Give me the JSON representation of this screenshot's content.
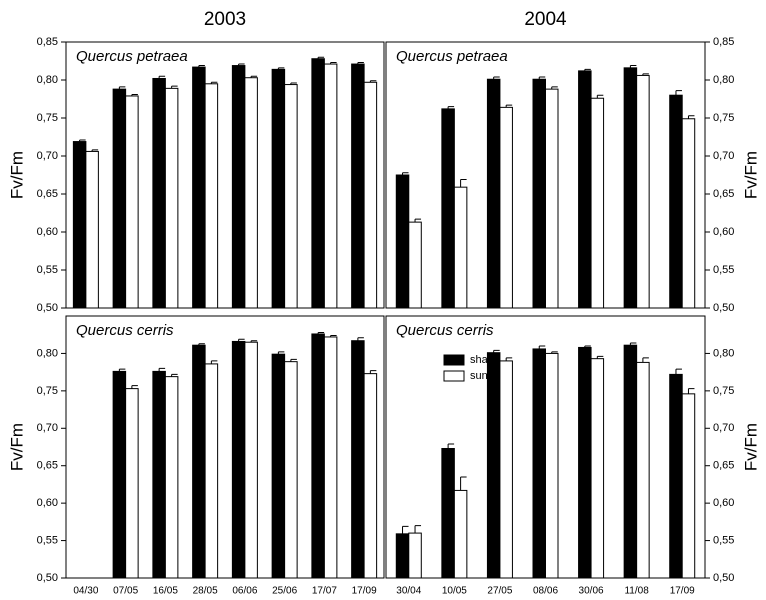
{
  "chart_data": [
    {
      "type": "bar",
      "title": "2003",
      "ylabel": "Fv/Fm",
      "annotation": "Quercus petraea",
      "series": [
        {
          "color": "#000000",
          "values": [
            0.719,
            0.788,
            0.802,
            0.817,
            0.819,
            0.814,
            0.828,
            0.821
          ],
          "errors": [
            0.002,
            0.003,
            0.003,
            0.002,
            0.002,
            0.002,
            0.002,
            0.002
          ]
        },
        {
          "color": "#ffffff",
          "values": [
            0.706,
            0.779,
            0.789,
            0.795,
            0.803,
            0.794,
            0.821,
            0.797
          ],
          "errors": [
            0.002,
            0.002,
            0.003,
            0.002,
            0.002,
            0.002,
            0.002,
            0.002
          ]
        }
      ],
      "ylim": [
        0.5,
        0.85
      ],
      "yticks": [
        {
          "value": 0.5,
          "label": "0,50"
        },
        {
          "value": 0.55,
          "label": "0,55"
        },
        {
          "value": 0.6,
          "label": "0,60"
        },
        {
          "value": 0.65,
          "label": "0,65"
        },
        {
          "value": 0.7,
          "label": "0,70"
        },
        {
          "value": 0.75,
          "label": "0,75"
        },
        {
          "value": 0.8,
          "label": "0,80"
        },
        {
          "value": 0.85,
          "label": "0,85"
        }
      ],
      "axis_side": "left"
    },
    {
      "type": "bar",
      "title": "2004",
      "ylabel": "Fv/Fm",
      "annotation": "Quercus petraea",
      "series": [
        {
          "color": "#000000",
          "values": [
            0.675,
            0.762,
            0.801,
            0.801,
            0.812,
            0.816,
            0.78
          ],
          "errors": [
            0.003,
            0.003,
            0.003,
            0.003,
            0.002,
            0.003,
            0.006
          ]
        },
        {
          "color": "#ffffff",
          "values": [
            0.613,
            0.659,
            0.764,
            0.788,
            0.776,
            0.806,
            0.749
          ],
          "errors": [
            0.004,
            0.01,
            0.003,
            0.003,
            0.004,
            0.002,
            0.004
          ]
        }
      ],
      "ylim": [
        0.5,
        0.85
      ],
      "yticks": [
        {
          "value": 0.5,
          "label": "0,50"
        },
        {
          "value": 0.55,
          "label": "0,55"
        },
        {
          "value": 0.6,
          "label": "0,60"
        },
        {
          "value": 0.65,
          "label": "0,65"
        },
        {
          "value": 0.7,
          "label": "0,70"
        },
        {
          "value": 0.75,
          "label": "0,75"
        },
        {
          "value": 0.8,
          "label": "0,80"
        },
        {
          "value": 0.85,
          "label": "0,85"
        }
      ],
      "axis_side": "right"
    },
    {
      "type": "bar",
      "ylabel": "Fv/Fm",
      "annotation": "Quercus cerris",
      "categories": [
        "04/30",
        "07/05",
        "16/05",
        "28/05",
        "06/06",
        "25/06",
        "17/07",
        "17/09"
      ],
      "series": [
        {
          "color": "#000000",
          "values": [
            null,
            0.776,
            0.776,
            0.811,
            0.816,
            0.799,
            0.826,
            0.817
          ],
          "errors": [
            null,
            0.003,
            0.004,
            0.002,
            0.003,
            0.003,
            0.002,
            0.004
          ]
        },
        {
          "color": "#ffffff",
          "values": [
            null,
            0.753,
            0.769,
            0.786,
            0.815,
            0.789,
            0.822,
            0.773
          ],
          "errors": [
            null,
            0.004,
            0.003,
            0.004,
            0.002,
            0.003,
            0.002,
            0.004
          ]
        }
      ],
      "ylim": [
        0.5,
        0.85
      ],
      "yticks": [
        {
          "value": 0.5,
          "label": "0,50"
        },
        {
          "value": 0.55,
          "label": "0,55"
        },
        {
          "value": 0.6,
          "label": "0,60"
        },
        {
          "value": 0.65,
          "label": "0,65"
        },
        {
          "value": 0.7,
          "label": "0,70"
        },
        {
          "value": 0.75,
          "label": "0,75"
        },
        {
          "value": 0.8,
          "label": "0,80"
        }
      ],
      "axis_side": "left"
    },
    {
      "type": "bar",
      "ylabel": "Fv/Fm",
      "annotation": "Quercus cerris",
      "categories": [
        "30/04",
        "10/05",
        "27/05",
        "08/06",
        "30/06",
        "11/08",
        "17/09"
      ],
      "series": [
        {
          "name": "shade",
          "color": "#000000",
          "values": [
            0.559,
            0.673,
            0.801,
            0.806,
            0.808,
            0.811,
            0.772
          ],
          "errors": [
            0.01,
            0.006,
            0.003,
            0.004,
            0.002,
            0.003,
            0.007
          ]
        },
        {
          "name": "sun",
          "color": "#ffffff",
          "values": [
            0.56,
            0.617,
            0.79,
            0.8,
            0.793,
            0.788,
            0.746
          ],
          "errors": [
            0.01,
            0.018,
            0.004,
            0.002,
            0.003,
            0.006,
            0.007
          ]
        }
      ],
      "ylim": [
        0.5,
        0.85
      ],
      "yticks": [
        {
          "value": 0.5,
          "label": "0,50"
        },
        {
          "value": 0.55,
          "label": "0,55"
        },
        {
          "value": 0.6,
          "label": "0,60"
        },
        {
          "value": 0.65,
          "label": "0,65"
        },
        {
          "value": 0.7,
          "label": "0,70"
        },
        {
          "value": 0.75,
          "label": "0,75"
        },
        {
          "value": 0.8,
          "label": "0,80"
        }
      ],
      "axis_side": "right",
      "legend": "upper left"
    }
  ]
}
